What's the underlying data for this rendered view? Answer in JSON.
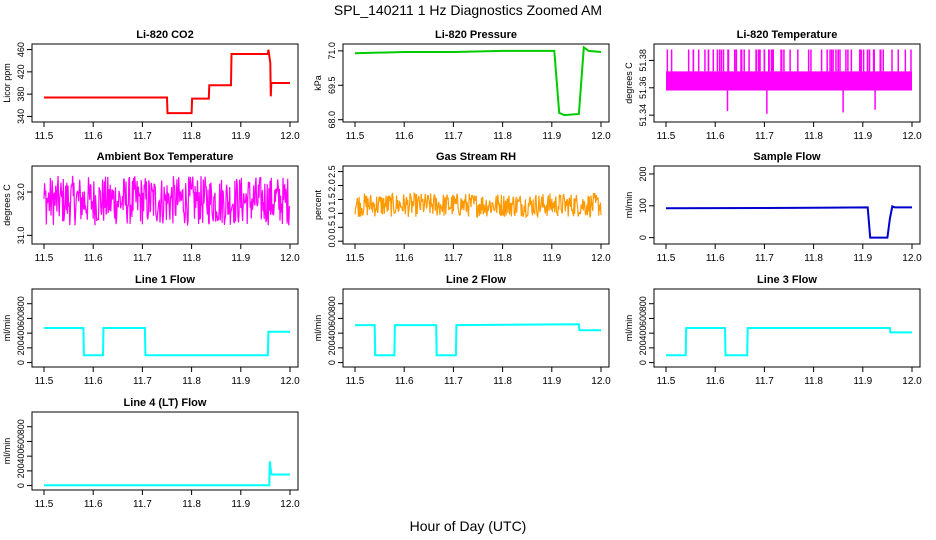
{
  "title": "SPL_140211 1 Hz Diagnostics Zoomed AM",
  "xlabel": "Hour of Day (UTC)",
  "chart_data": [
    {
      "type": "line",
      "title": "Li-820 CO2",
      "ylabel": "Licor ppm",
      "xticks": [
        "11.5",
        "11.6",
        "11.7",
        "11.8",
        "11.9",
        "12.0"
      ],
      "yticks": [
        "340",
        "380",
        "420",
        "460"
      ],
      "ylim": [
        330,
        470
      ],
      "xlim": [
        11.5,
        12.0
      ],
      "color": "#ff0000",
      "x": [
        11.5,
        11.75,
        11.751,
        11.8,
        11.801,
        11.835,
        11.836,
        11.88,
        11.881,
        11.955,
        11.956,
        11.96,
        11.961,
        11.962,
        12.0
      ],
      "y": [
        374,
        374,
        346,
        346,
        372,
        372,
        396,
        396,
        452,
        452,
        460,
        436,
        376,
        400,
        400
      ]
    },
    {
      "type": "line",
      "title": "Li-820 Pressure",
      "ylabel": "kPa",
      "xticks": [
        "11.5",
        "11.6",
        "11.7",
        "11.8",
        "11.9",
        "12.0"
      ],
      "yticks": [
        "68.0",
        "69.5",
        "71.0"
      ],
      "ylim": [
        67.9,
        71.3
      ],
      "xlim": [
        11.5,
        12.0
      ],
      "color": "#00cc00",
      "x": [
        11.5,
        11.6,
        11.7,
        11.8,
        11.905,
        11.915,
        11.925,
        11.955,
        11.965,
        11.975,
        12.0
      ],
      "y": [
        70.9,
        70.95,
        70.95,
        71.0,
        71.0,
        68.3,
        68.2,
        68.25,
        71.15,
        71.0,
        70.95
      ]
    },
    {
      "type": "line",
      "title": "Li-820 Temperature",
      "ylabel": "degrees C",
      "xticks": [
        "11.5",
        "11.6",
        "11.7",
        "11.8",
        "11.9",
        "12.0"
      ],
      "yticks": [
        "51.34",
        "51.36",
        "51.38"
      ],
      "ylim": [
        51.335,
        51.392
      ],
      "xlim": [
        11.5,
        12.0
      ],
      "color": "#ff00ff",
      "band": [
        51.358,
        51.372
      ],
      "spike_top": 51.388,
      "x": [
        11.5,
        11.52,
        11.56,
        11.6,
        11.64,
        11.68,
        11.72,
        11.76,
        11.8,
        11.84,
        11.88,
        11.92,
        11.96,
        12.0
      ],
      "y": [
        51.37,
        51.36,
        51.372,
        51.362,
        51.37,
        51.358,
        51.366,
        51.372,
        51.36,
        51.37,
        51.364,
        51.372,
        51.36,
        51.366
      ],
      "dips": [
        [
          11.625,
          51.343
        ],
        [
          11.705,
          51.341
        ],
        [
          11.86,
          51.342
        ],
        [
          11.925,
          51.344
        ]
      ]
    },
    {
      "type": "line",
      "title": "Ambient Box Temperature",
      "ylabel": "degrees C",
      "xticks": [
        "11.5",
        "11.6",
        "11.7",
        "11.8",
        "11.9",
        "12.0"
      ],
      "yticks": [
        "31.0",
        "32.0"
      ],
      "ylim": [
        30.8,
        32.6
      ],
      "xlim": [
        11.5,
        12.0
      ],
      "color": "#ff00ff",
      "band": [
        31.3,
        32.3
      ],
      "mean": 31.8
    },
    {
      "type": "line",
      "title": "Gas Stream RH",
      "ylabel": "percent",
      "xticks": [
        "11.5",
        "11.6",
        "11.7",
        "11.8",
        "11.9",
        "12.0"
      ],
      "yticks": [
        "0.0",
        "0.5",
        "1.0",
        "1.5",
        "2.0",
        "2.5"
      ],
      "ylim": [
        -0.1,
        2.7
      ],
      "xlim": [
        11.5,
        12.0
      ],
      "color": "#ff9900",
      "band": [
        0.9,
        1.65
      ],
      "mean": 1.3
    },
    {
      "type": "line",
      "title": "Sample Flow",
      "ylabel": "ml/min",
      "xticks": [
        "11.5",
        "11.6",
        "11.7",
        "11.8",
        "11.9",
        "12.0"
      ],
      "yticks": [
        "0",
        "100",
        "200"
      ],
      "ylim": [
        -20,
        225
      ],
      "xlim": [
        11.5,
        12.0
      ],
      "color": "#0000cc",
      "x": [
        11.5,
        11.7,
        11.8,
        11.91,
        11.915,
        11.95,
        11.955,
        11.96,
        11.965,
        12.0
      ],
      "y": [
        92,
        93,
        94,
        95,
        0,
        0,
        60,
        98,
        95,
        95
      ]
    },
    {
      "type": "line",
      "title": "Line 1 Flow",
      "ylabel": "ml/min",
      "xticks": [
        "11.5",
        "11.6",
        "11.7",
        "11.8",
        "11.9",
        "12.0"
      ],
      "yticks": [
        "0",
        "200",
        "400",
        "600",
        "800"
      ],
      "ylim": [
        -60,
        1000
      ],
      "xlim": [
        11.5,
        12.0
      ],
      "color": "#00ffff",
      "x": [
        11.5,
        11.58,
        11.581,
        11.62,
        11.621,
        11.705,
        11.706,
        11.955,
        11.956,
        12.0
      ],
      "y": [
        470,
        470,
        100,
        100,
        470,
        470,
        100,
        100,
        420,
        420
      ]
    },
    {
      "type": "line",
      "title": "Line 2 Flow",
      "ylabel": "ml/min",
      "xticks": [
        "11.5",
        "11.6",
        "11.7",
        "11.8",
        "11.9",
        "12.0"
      ],
      "yticks": [
        "0",
        "200",
        "400",
        "600",
        "800"
      ],
      "ylim": [
        -60,
        1000
      ],
      "xlim": [
        11.5,
        12.0
      ],
      "color": "#00ffff",
      "x": [
        11.5,
        11.54,
        11.541,
        11.58,
        11.581,
        11.665,
        11.666,
        11.705,
        11.706,
        11.955,
        11.956,
        12.0
      ],
      "y": [
        510,
        510,
        100,
        100,
        510,
        510,
        100,
        100,
        510,
        520,
        440,
        440
      ]
    },
    {
      "type": "line",
      "title": "Line 3 Flow",
      "ylabel": "ml/min",
      "xticks": [
        "11.5",
        "11.6",
        "11.7",
        "11.8",
        "11.9",
        "12.0"
      ],
      "yticks": [
        "0",
        "200",
        "400",
        "600",
        "800"
      ],
      "ylim": [
        -60,
        1000
      ],
      "xlim": [
        11.5,
        12.0
      ],
      "color": "#00ffff",
      "x": [
        11.5,
        11.54,
        11.541,
        11.62,
        11.621,
        11.665,
        11.666,
        11.955,
        11.956,
        12.0
      ],
      "y": [
        100,
        100,
        470,
        470,
        100,
        100,
        470,
        470,
        410,
        410
      ]
    },
    {
      "type": "line",
      "title": "Line 4 (LT) Flow",
      "ylabel": "ml/min",
      "xticks": [
        "11.5",
        "11.6",
        "11.7",
        "11.8",
        "11.9",
        "12.0"
      ],
      "yticks": [
        "0",
        "200",
        "400",
        "600",
        "800"
      ],
      "ylim": [
        -60,
        1000
      ],
      "xlim": [
        11.5,
        12.0
      ],
      "color": "#00ffff",
      "x": [
        11.5,
        11.958,
        11.959,
        11.962,
        11.963,
        12.0
      ],
      "y": [
        5,
        5,
        330,
        160,
        150,
        150
      ]
    }
  ]
}
